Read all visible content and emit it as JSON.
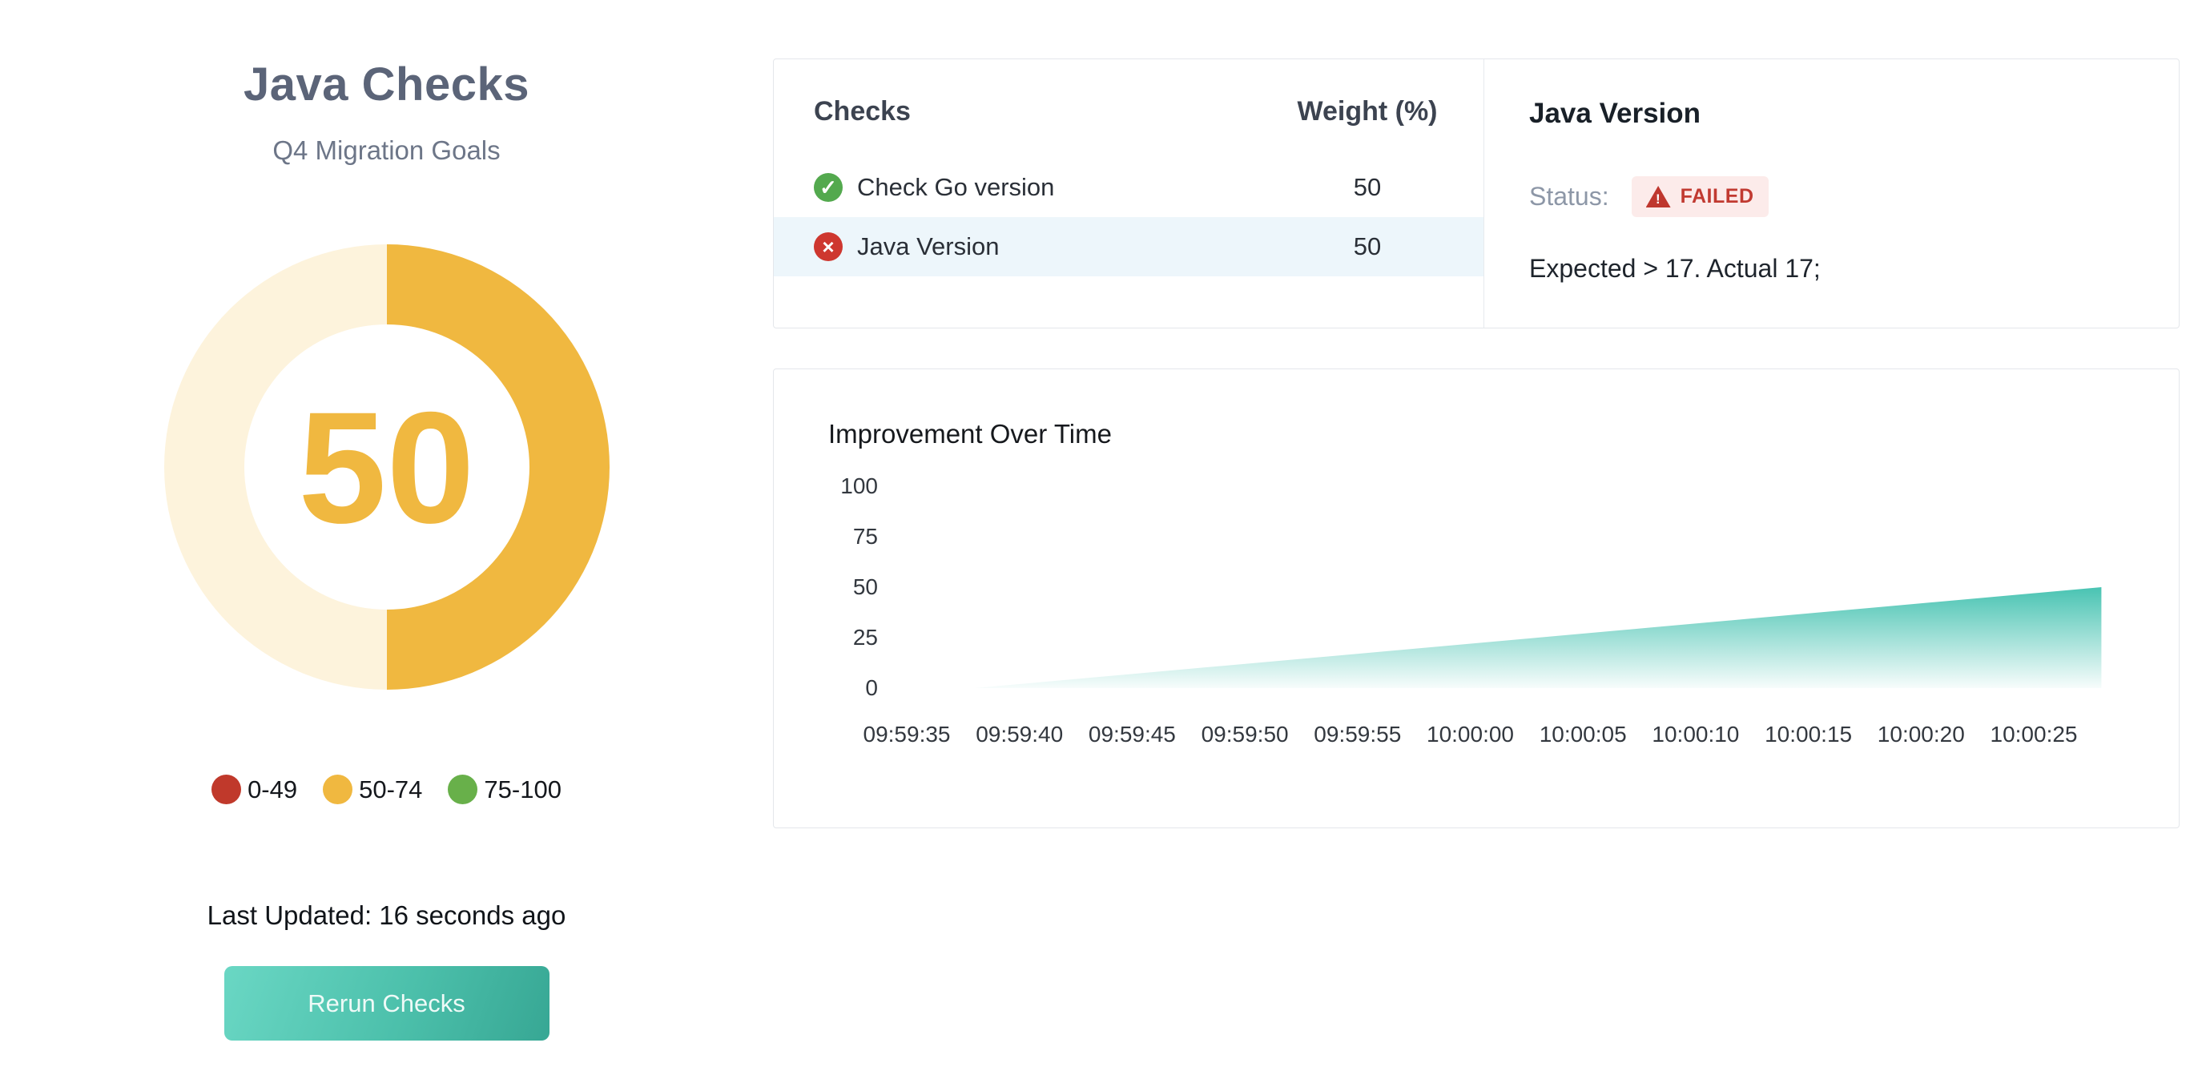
{
  "header": {
    "title": "Java Checks",
    "subtitle": "Q4 Migration Goals"
  },
  "gauge": {
    "value": 50,
    "fill_color": "#f0b840",
    "track_color": "#fdf3dc",
    "legend": [
      {
        "label": "0-49",
        "color": "#c0392b"
      },
      {
        "label": "50-74",
        "color": "#f0b840"
      },
      {
        "label": "75-100",
        "color": "#68b04a"
      }
    ]
  },
  "footer": {
    "last_updated": "Last Updated: 16 seconds ago",
    "rerun_label": "Rerun Checks"
  },
  "checks": {
    "headers": {
      "name": "Checks",
      "weight": "Weight (%)"
    },
    "rows": [
      {
        "name": "Check Go version",
        "weight": "50",
        "status": "pass"
      },
      {
        "name": "Java Version",
        "weight": "50",
        "status": "fail"
      }
    ]
  },
  "detail": {
    "title": "Java Version",
    "status_label": "Status:",
    "badge_label": "FAILED",
    "message": "Expected > 17. Actual 17;"
  },
  "chart_data": {
    "type": "area",
    "title": "Improvement Over Time",
    "x": [
      "09:59:35",
      "09:59:40",
      "09:59:45",
      "09:59:50",
      "09:59:55",
      "10:00:00",
      "10:00:05",
      "10:00:10",
      "10:00:15",
      "10:00:20",
      "10:00:25"
    ],
    "yticks": [
      "100",
      "75",
      "50",
      "25",
      "0"
    ],
    "ylim": [
      0,
      100
    ],
    "area_color": "#3fc0ae",
    "points": [
      {
        "x": "09:59:38",
        "y": 0
      },
      {
        "x": "09:59:43",
        "y": 5
      },
      {
        "x": "09:59:48",
        "y": 10
      },
      {
        "x": "09:59:53",
        "y": 15
      },
      {
        "x": "09:59:58",
        "y": 20
      },
      {
        "x": "10:00:03",
        "y": 25
      },
      {
        "x": "10:00:08",
        "y": 30
      },
      {
        "x": "10:00:13",
        "y": 35
      },
      {
        "x": "10:00:18",
        "y": 40
      },
      {
        "x": "10:00:23",
        "y": 45
      },
      {
        "x": "10:00:28",
        "y": 50
      }
    ]
  }
}
